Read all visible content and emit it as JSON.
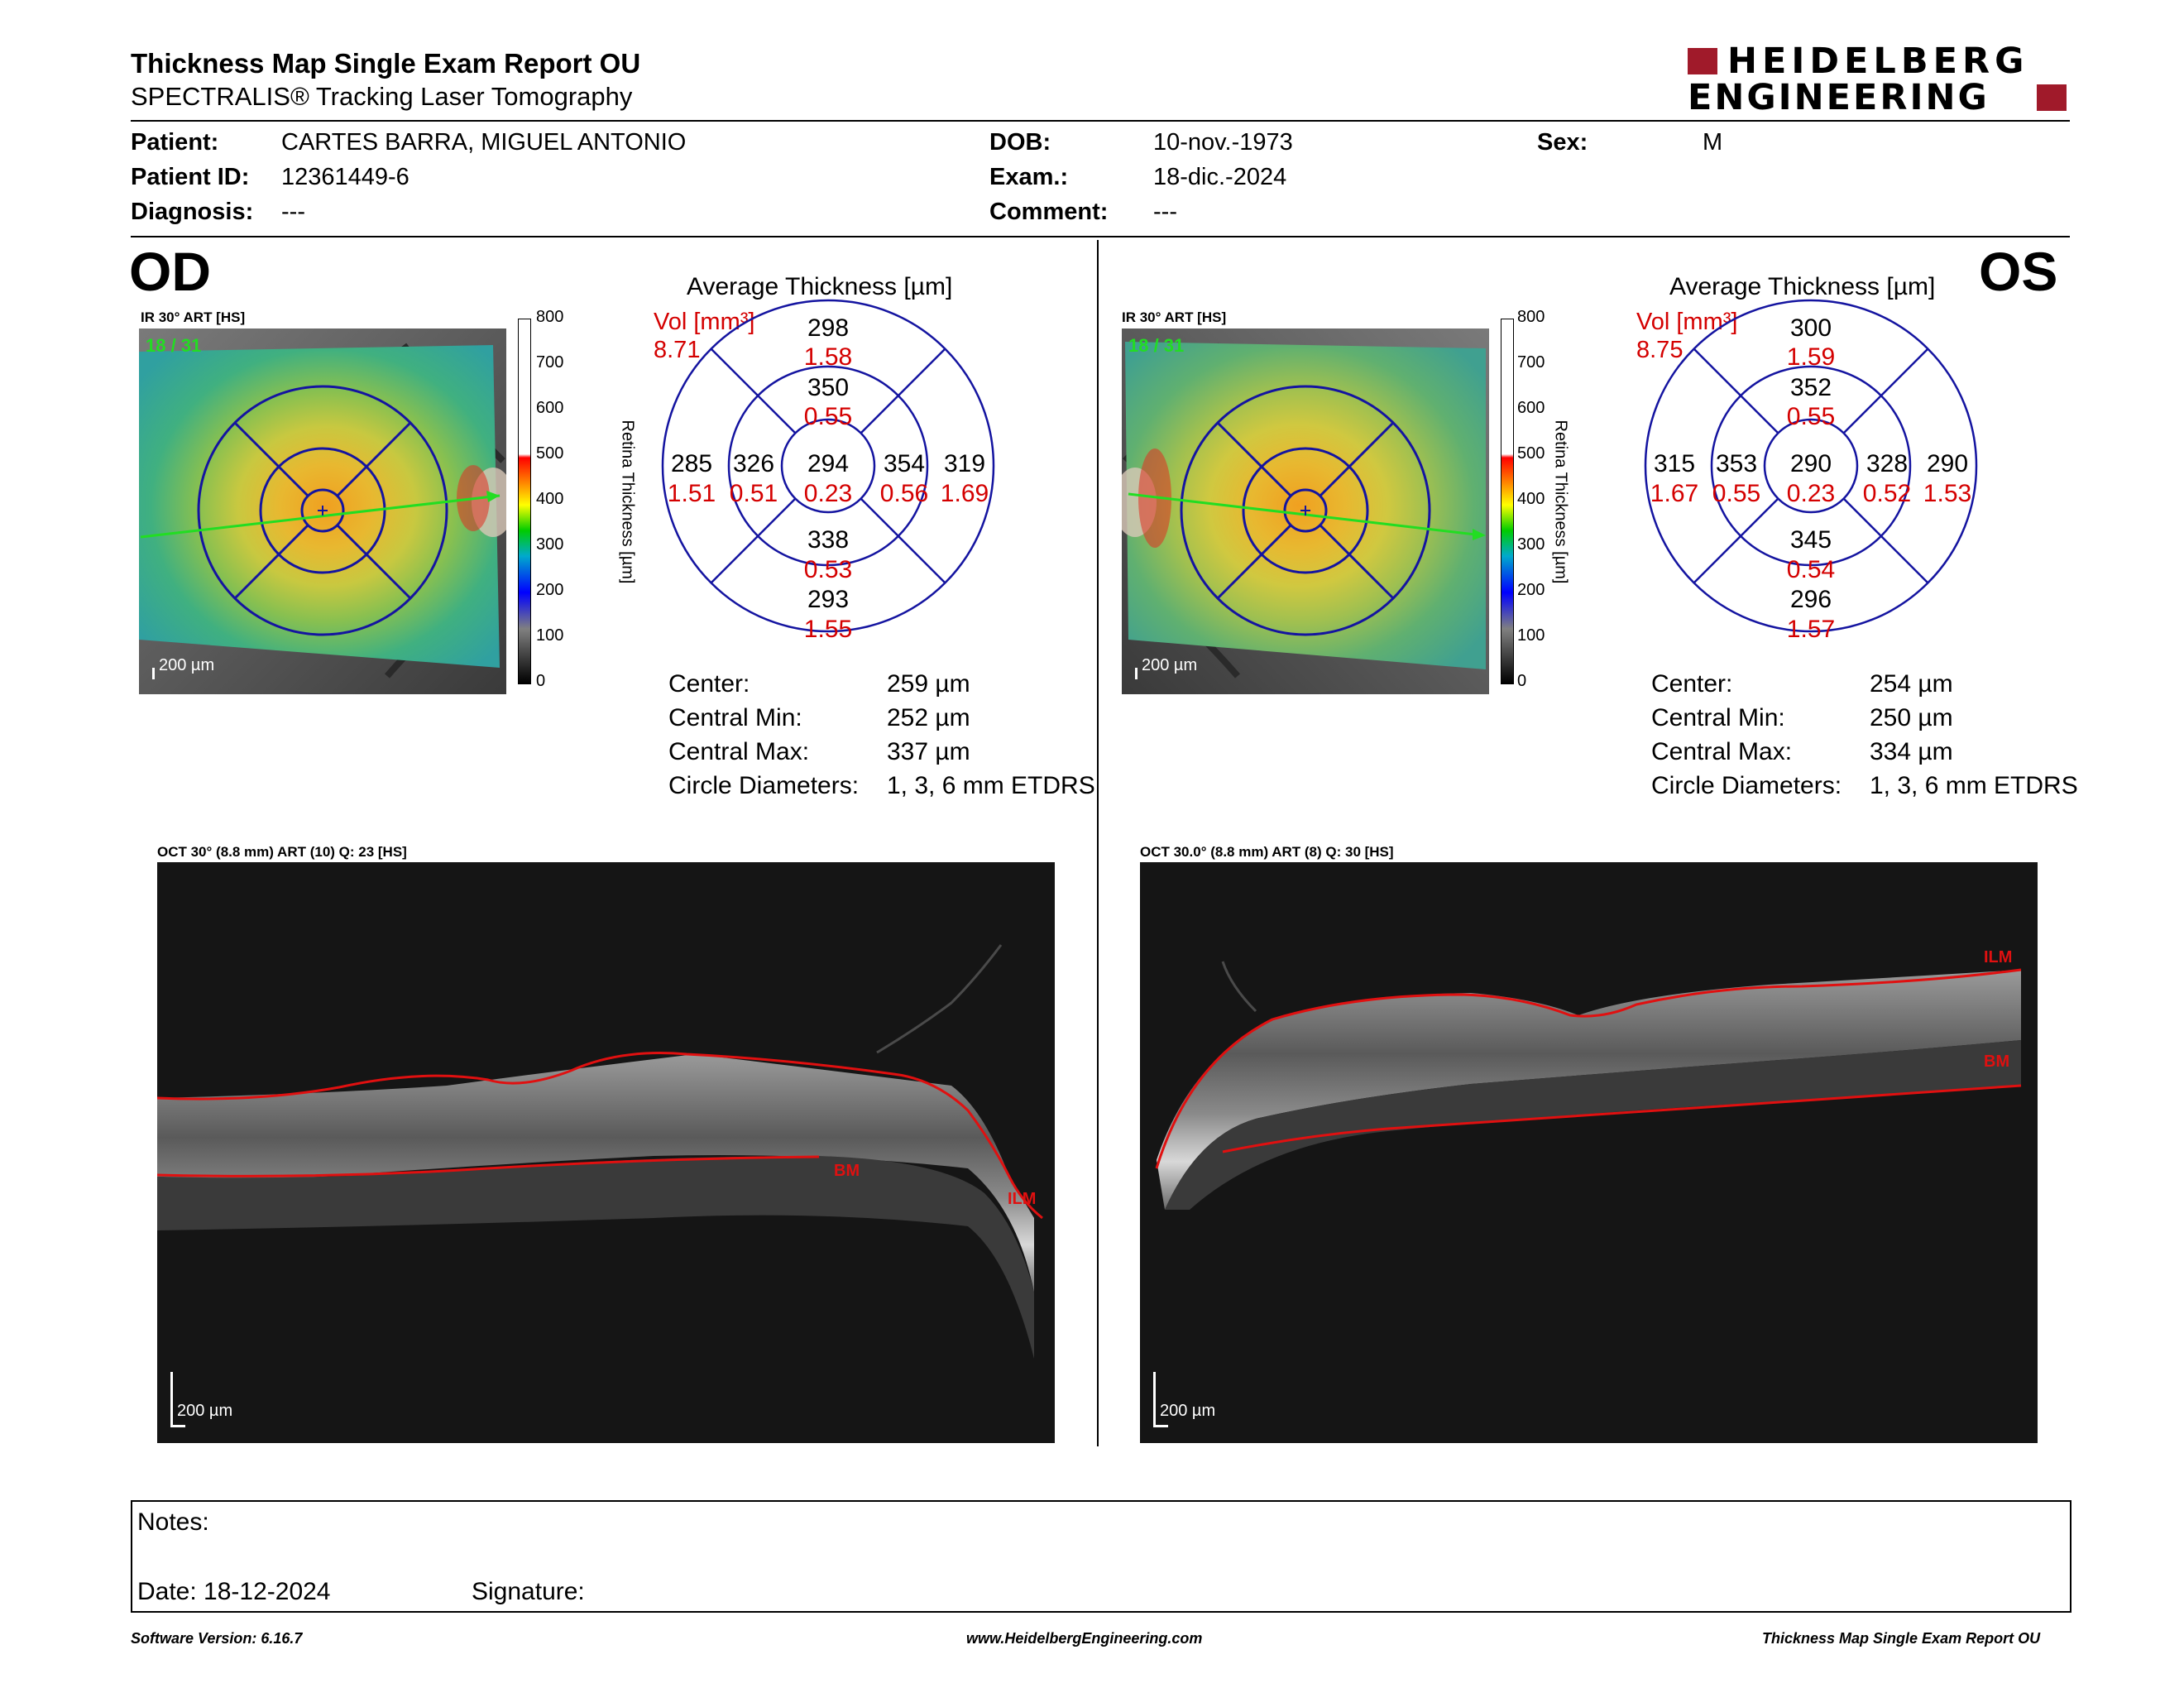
{
  "header": {
    "title": "Thickness Map Single Exam Report OU",
    "subtitle": "SPECTRALIS® Tracking Laser Tomography",
    "logo_line1": "HEIDELBERG",
    "logo_line2": "ENGINEERING"
  },
  "patient": {
    "patient_label": "Patient:",
    "patient_value": "CARTES BARRA, MIGUEL ANTONIO",
    "id_label": "Patient ID:",
    "id_value": "12361449-6",
    "diagnosis_label": "Diagnosis:",
    "diagnosis_value": "---",
    "dob_label": "DOB:",
    "dob_value": "10-nov.-1973",
    "exam_label": "Exam.:",
    "exam_value": "18-dic.-2024",
    "comment_label": "Comment:",
    "comment_value": "---",
    "sex_label": "Sex:",
    "sex_value": "M"
  },
  "od": {
    "eye_label": "OD",
    "ir_label": "IR 30° ART [HS]",
    "ir_overlay": "18 / 31",
    "scale_text": "200 µm",
    "colorbar_ticks": [
      "800",
      "700",
      "600",
      "500",
      "400",
      "300",
      "200",
      "100",
      "0"
    ],
    "colorbar_title": "Retina Thickness [µm]",
    "avg_title": "Average Thickness [µm]",
    "vol_label": "Vol [mm³]",
    "vol_value": "8.71",
    "etdrs": {
      "center_t": "294",
      "center_v": "0.23",
      "inner_sup_t": "350",
      "inner_sup_v": "0.55",
      "inner_inf_t": "338",
      "inner_inf_v": "0.53",
      "inner_left_t": "326",
      "inner_left_v": "0.51",
      "inner_right_t": "354",
      "inner_right_v": "0.56",
      "outer_sup_t": "298",
      "outer_sup_v": "1.58",
      "outer_inf_t": "293",
      "outer_inf_v": "1.55",
      "outer_left_t": "285",
      "outer_left_v": "1.51",
      "outer_right_t": "319",
      "outer_right_v": "1.69"
    },
    "stats": {
      "center_label": "Center:",
      "center_value": "259 µm",
      "min_label": "Central Min:",
      "min_value": "252 µm",
      "max_label": "Central Max:",
      "max_value": "337 µm",
      "diam_label": "Circle Diameters:",
      "diam_value": "1, 3, 6 mm ETDRS"
    },
    "oct_label": "OCT 30° (8.8 mm) ART (10) Q: 23 [HS]",
    "oct_scale": "200 µm",
    "layer_ilm": "ILM",
    "layer_bm": "BM"
  },
  "os": {
    "eye_label": "OS",
    "ir_label": "IR 30° ART [HS]",
    "ir_overlay": "18 / 31",
    "scale_text": "200 µm",
    "colorbar_ticks": [
      "800",
      "700",
      "600",
      "500",
      "400",
      "300",
      "200",
      "100",
      "0"
    ],
    "colorbar_title": "Retina Thickness [µm]",
    "avg_title": "Average Thickness [µm]",
    "vol_label": "Vol [mm³]",
    "vol_value": "8.75",
    "etdrs": {
      "center_t": "290",
      "center_v": "0.23",
      "inner_sup_t": "352",
      "inner_sup_v": "0.55",
      "inner_inf_t": "345",
      "inner_inf_v": "0.54",
      "inner_left_t": "353",
      "inner_left_v": "0.55",
      "inner_right_t": "328",
      "inner_right_v": "0.52",
      "outer_sup_t": "300",
      "outer_sup_v": "1.59",
      "outer_inf_t": "296",
      "outer_inf_v": "1.57",
      "outer_left_t": "315",
      "outer_left_v": "1.67",
      "outer_right_t": "290",
      "outer_right_v": "1.53"
    },
    "stats": {
      "center_label": "Center:",
      "center_value": "254 µm",
      "min_label": "Central Min:",
      "min_value": "250 µm",
      "max_label": "Central Max:",
      "max_value": "334 µm",
      "diam_label": "Circle Diameters:",
      "diam_value": "1, 3, 6 mm ETDRS"
    },
    "oct_label": "OCT 30.0° (8.8 mm) ART (8) Q: 30 [HS]",
    "oct_scale": "200 µm",
    "layer_ilm": "ILM",
    "layer_bm": "BM"
  },
  "notes": {
    "notes_label": "Notes:",
    "date_label": "Date: 18-12-2024",
    "signature_label": "Signature:"
  },
  "footer": {
    "software": "Software Version: 6.16.7",
    "website": "www.HeidelbergEngineering.com",
    "report_name": "Thickness Map Single Exam Report OU"
  },
  "colors": {
    "etdrs_blue": "#1414a0",
    "volume_red": "#d40000",
    "logo_red": "#a01a2a",
    "scan_green": "#22dd22",
    "layer_red": "#e01010"
  }
}
